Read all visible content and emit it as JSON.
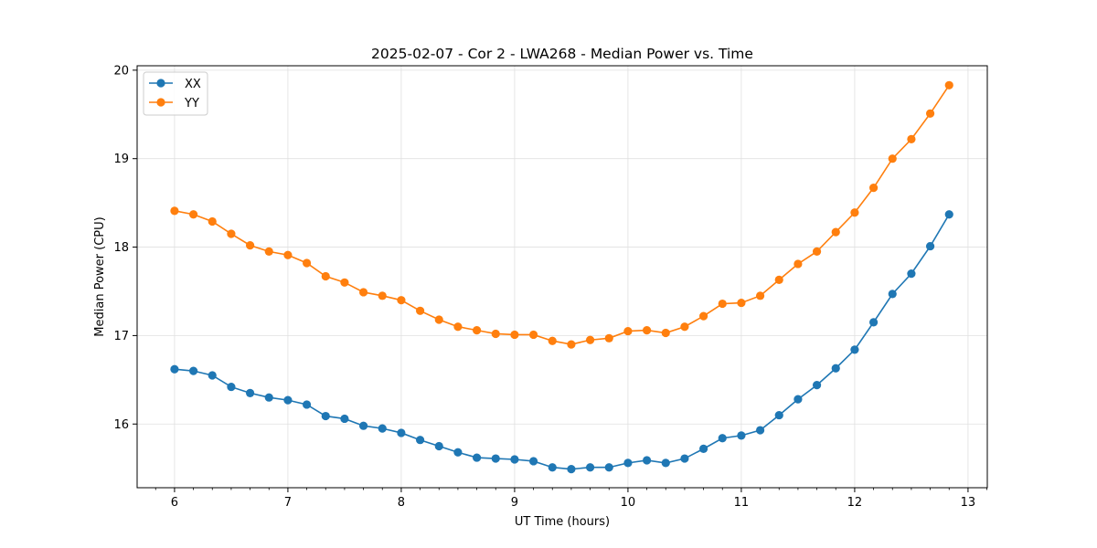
{
  "chart_data": {
    "type": "line",
    "title": "2025-02-07 - Cor 2 - LWA268 - Median Power vs. Time",
    "xlabel": "UT Time (hours)",
    "ylabel": "Median Power (CPU)",
    "xlim": [
      5.67,
      13.17
    ],
    "ylim": [
      15.28,
      20.05
    ],
    "grid": true,
    "legend_position": "top-left",
    "x_ticks": [
      6,
      7,
      8,
      9,
      10,
      11,
      12,
      13
    ],
    "y_ticks": [
      16,
      17,
      18,
      19,
      20
    ],
    "x": [
      6.0,
      6.1667,
      6.3333,
      6.5,
      6.6667,
      6.8333,
      7.0,
      7.1667,
      7.3333,
      7.5,
      7.6667,
      7.8333,
      8.0,
      8.1667,
      8.3333,
      8.5,
      8.6667,
      8.8333,
      9.0,
      9.1667,
      9.3333,
      9.5,
      9.6667,
      9.8333,
      10.0,
      10.1667,
      10.3333,
      10.5,
      10.6667,
      10.8333,
      11.0,
      11.1667,
      11.3333,
      11.5,
      11.6667,
      11.8333,
      12.0,
      12.1667,
      12.3333,
      12.5,
      12.6667,
      12.8333
    ],
    "series": [
      {
        "name": "XX",
        "color": "#1f77b4",
        "values": [
          16.62,
          16.6,
          16.55,
          16.42,
          16.35,
          16.3,
          16.27,
          16.22,
          16.09,
          16.06,
          15.98,
          15.95,
          15.9,
          15.82,
          15.75,
          15.68,
          15.62,
          15.61,
          15.6,
          15.58,
          15.51,
          15.49,
          15.51,
          15.51,
          15.56,
          15.59,
          15.56,
          15.61,
          15.72,
          15.84,
          15.87,
          15.93,
          16.1,
          16.28,
          16.44,
          16.63,
          16.84,
          17.15,
          17.47,
          17.7,
          18.01,
          18.37
        ]
      },
      {
        "name": "YY",
        "color": "#ff7f0e",
        "values": [
          18.41,
          18.37,
          18.29,
          18.15,
          18.02,
          17.95,
          17.91,
          17.82,
          17.67,
          17.6,
          17.49,
          17.45,
          17.4,
          17.28,
          17.18,
          17.1,
          17.06,
          17.02,
          17.01,
          17.01,
          16.94,
          16.9,
          16.95,
          16.97,
          17.05,
          17.06,
          17.03,
          17.1,
          17.22,
          17.36,
          17.37,
          17.45,
          17.63,
          17.81,
          17.95,
          18.17,
          18.39,
          18.67,
          19.0,
          19.22,
          19.51,
          19.83
        ]
      }
    ]
  }
}
